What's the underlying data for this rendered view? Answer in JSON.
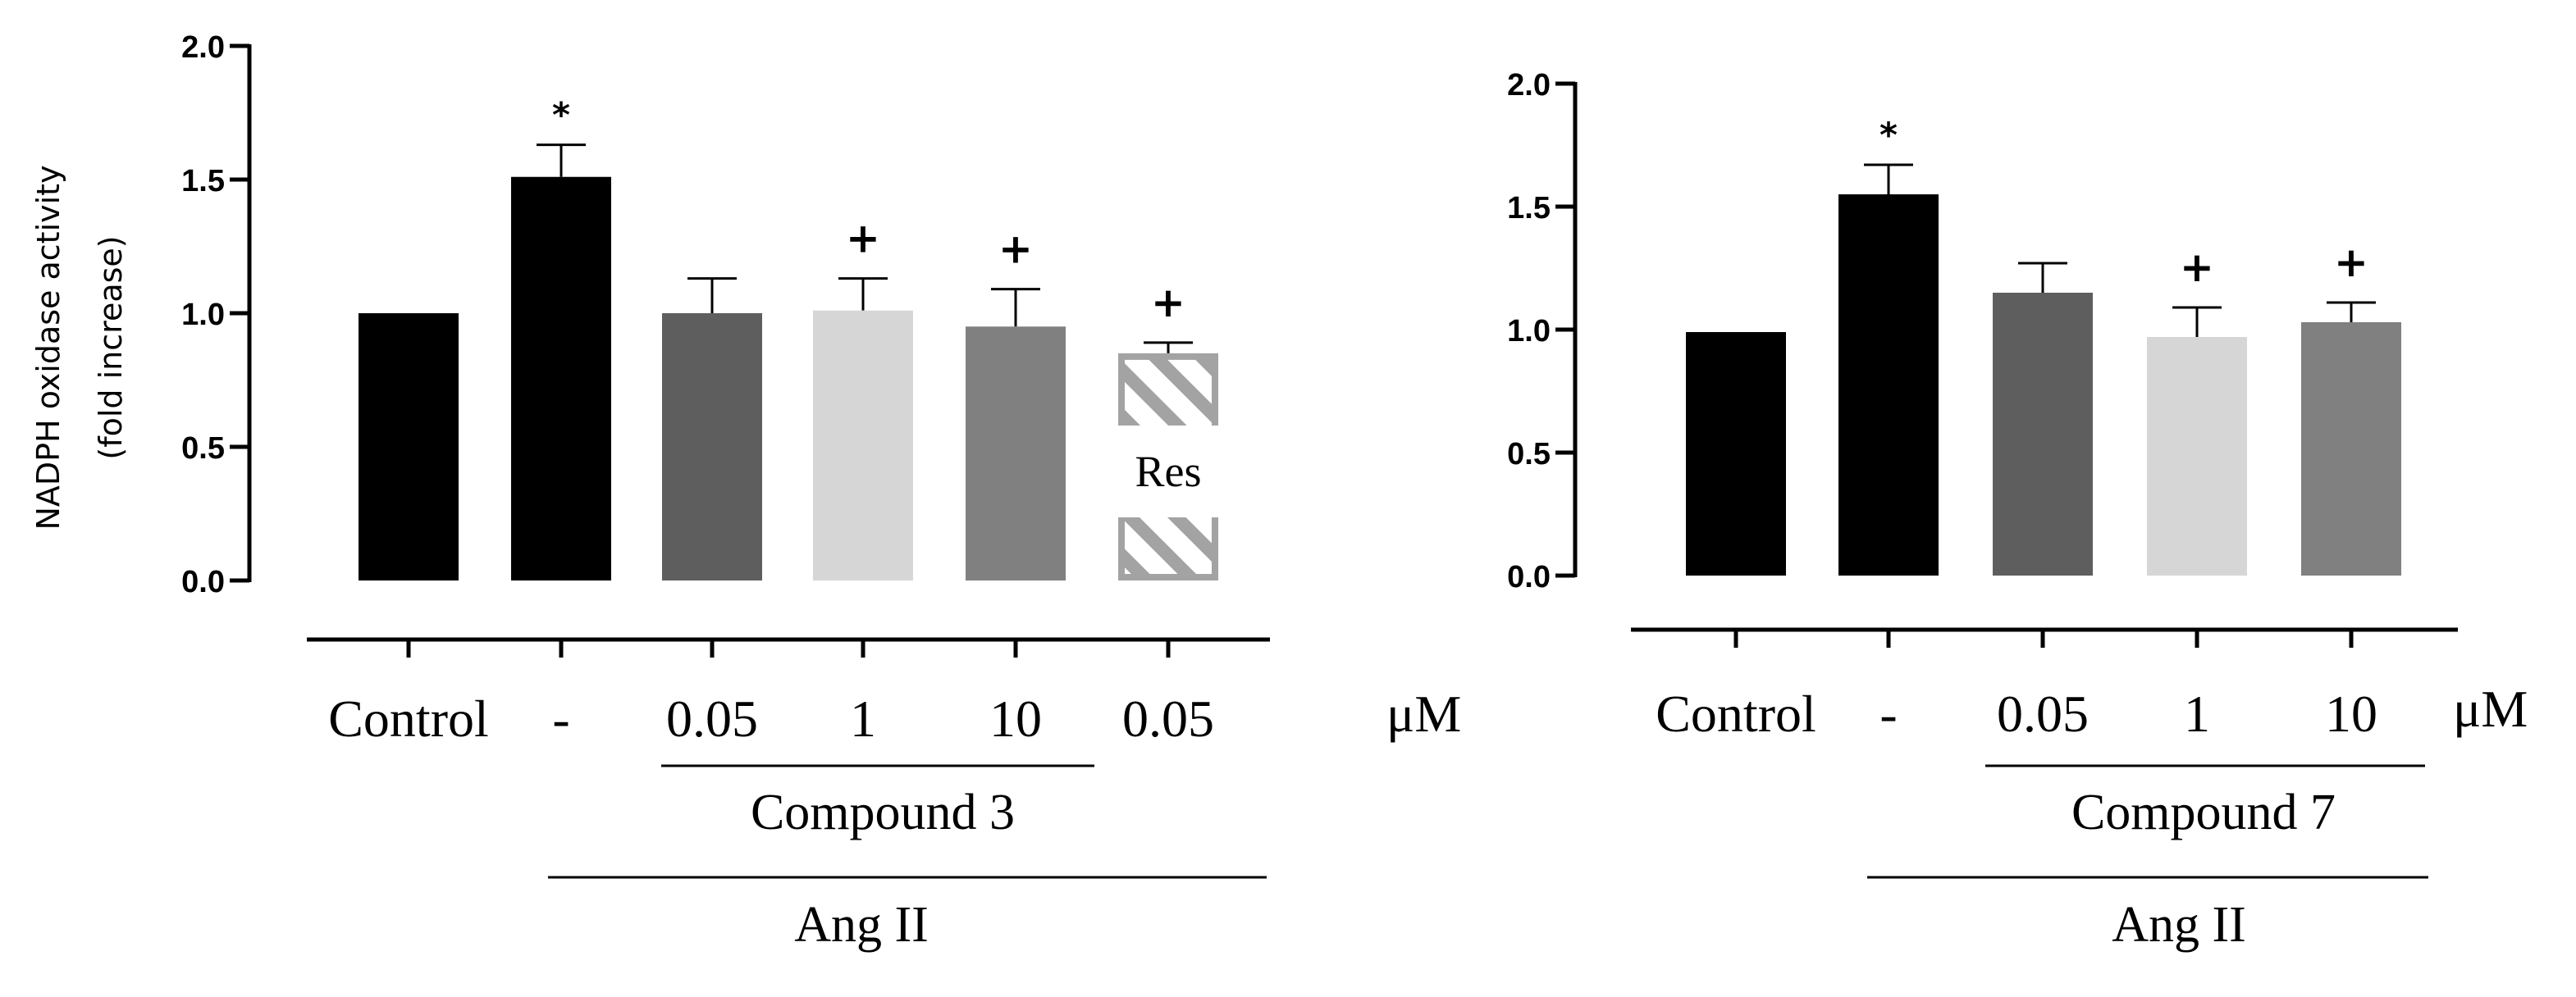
{
  "chart_data": [
    {
      "type": "bar",
      "ylabel": "NADPH oxidase activity",
      "ylabel2": "(fold increase)",
      "ylim": [
        0,
        2.0
      ],
      "yticks": [
        "0.0",
        "0.5",
        "1.0",
        "1.5",
        "2.0"
      ],
      "categories": [
        "Control",
        "-",
        "0.05",
        "1",
        "10",
        "0.05"
      ],
      "unit": "μM",
      "values": [
        1.0,
        1.51,
        1.0,
        1.01,
        0.95,
        0.85
      ],
      "errors": [
        0,
        0.12,
        0.13,
        0.12,
        0.14,
        0.04
      ],
      "colors": [
        "#000000",
        "#000000",
        "#5e5e5e",
        "#d6d6d6",
        "#808080",
        "hatched"
      ],
      "markers": [
        "",
        "*",
        "",
        "+",
        "+",
        "+"
      ],
      "bar_inner_label": "Res",
      "group_label": "Compound 3",
      "outer_label": "Ang II"
    },
    {
      "type": "bar",
      "ylim": [
        0,
        2.0
      ],
      "yticks": [
        "0.0",
        "0.5",
        "1.0",
        "1.5",
        "2.0"
      ],
      "categories": [
        "Control",
        "-",
        "0.05",
        "1",
        "10"
      ],
      "unit": "μM",
      "values": [
        0.99,
        1.55,
        1.15,
        0.97,
        1.03
      ],
      "errors": [
        0,
        0.12,
        0.12,
        0.12,
        0.08
      ],
      "colors": [
        "#000000",
        "#000000",
        "#5e5e5e",
        "#d6d6d6",
        "#808080"
      ],
      "markers": [
        "",
        "*",
        "",
        "+",
        "+"
      ],
      "group_label": "Compound 7",
      "outer_label": "Ang II"
    }
  ]
}
